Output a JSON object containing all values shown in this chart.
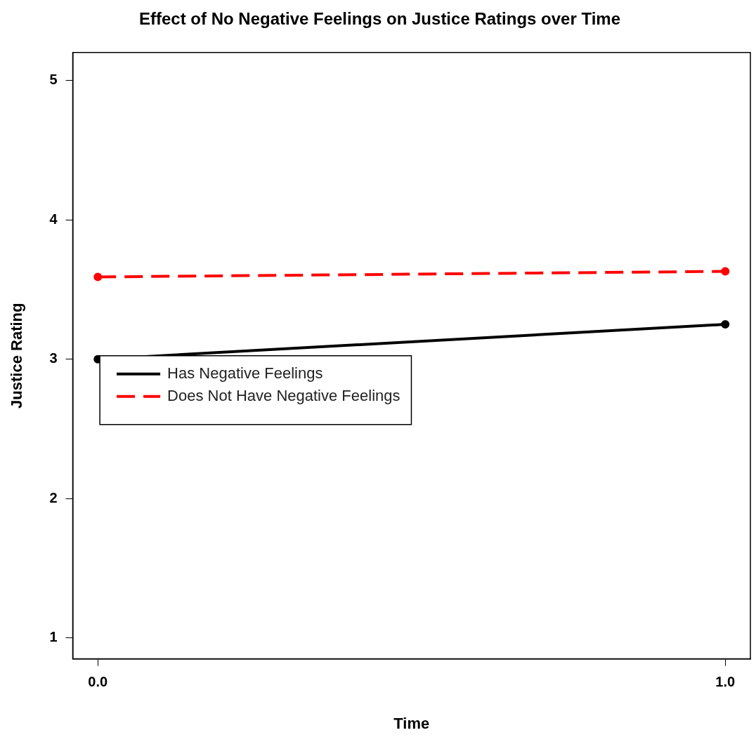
{
  "chart_data": {
    "type": "line",
    "title": "Effect of No Negative Feelings on Justice Ratings over Time",
    "xlabel": "Time",
    "ylabel": "Justice Rating",
    "x": [
      0,
      1
    ],
    "series": [
      {
        "name": "Has Negative Feelings",
        "color": "#000000",
        "values": [
          3.0,
          3.25
        ],
        "line_style": "solid"
      },
      {
        "name": "Does Not Have Negative Feelings",
        "color": "#ff0000",
        "values": [
          3.59,
          3.63
        ],
        "line_style": "dashed"
      }
    ],
    "xlim": [
      -0.04,
      1.04
    ],
    "xticks": [
      {
        "value": 0,
        "label": "0.0"
      },
      {
        "value": 1,
        "label": "1.0"
      }
    ],
    "ylim": [
      0.85,
      5.2
    ],
    "yticks": [
      1,
      2,
      3,
      4,
      5
    ],
    "grid": false,
    "legend": "left",
    "marker": "circle"
  }
}
